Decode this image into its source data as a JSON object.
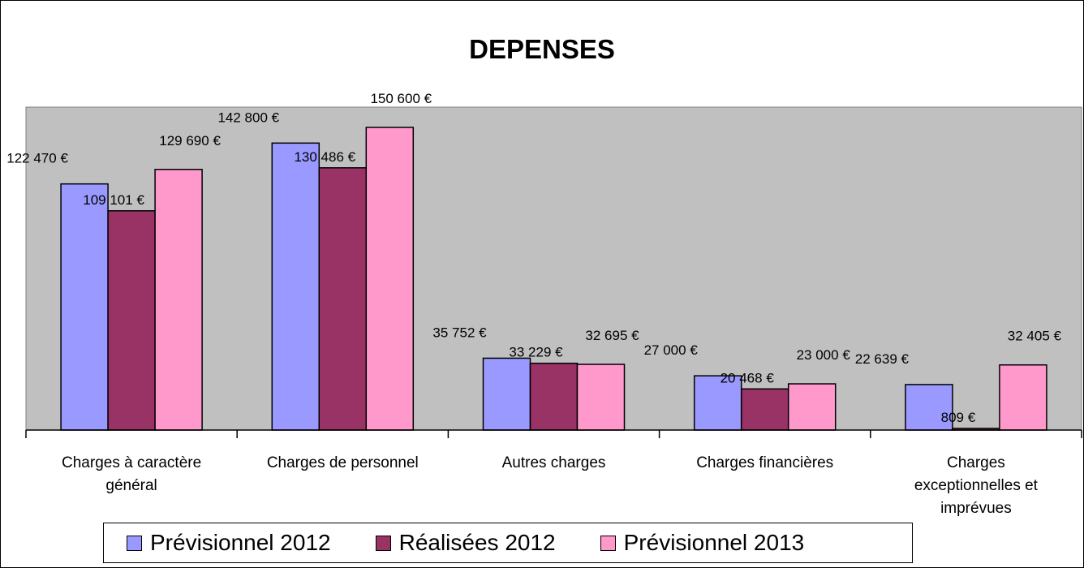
{
  "chart_data": {
    "type": "bar",
    "title": "DEPENSES",
    "categories": [
      [
        "Charges à caractère",
        "général"
      ],
      [
        "Charges de personnel"
      ],
      [
        "Autres charges"
      ],
      [
        "Charges financières"
      ],
      [
        "Charges",
        "exceptionnelles et",
        "imprévues"
      ]
    ],
    "series": [
      {
        "name": "Prévisionnel 2012",
        "color": "#9999ff",
        "values": [
          122470,
          142800,
          35752,
          27000,
          22639
        ],
        "labels": [
          "122 470 €",
          "142 800 €",
          "35 752 €",
          "27 000 €",
          "22 639 €"
        ]
      },
      {
        "name": "Réalisées 2012",
        "color": "#993366",
        "values": [
          109101,
          130486,
          33229,
          20468,
          809
        ],
        "labels": [
          "109 101 €",
          "130 486 €",
          "33 229 €",
          "20 468 €",
          "809 €"
        ]
      },
      {
        "name": "Prévisionnel 2013",
        "color": "#ff99cc",
        "values": [
          129690,
          150600,
          32695,
          23000,
          32405
        ],
        "labels": [
          "129 690 €",
          "150 600 €",
          "32 695 €",
          "23 000 €",
          "32 405 €"
        ]
      }
    ],
    "ylim": [
      0,
      160000
    ],
    "plot_background": "#c0c0c0",
    "grid": false,
    "legend_position": "bottom"
  }
}
